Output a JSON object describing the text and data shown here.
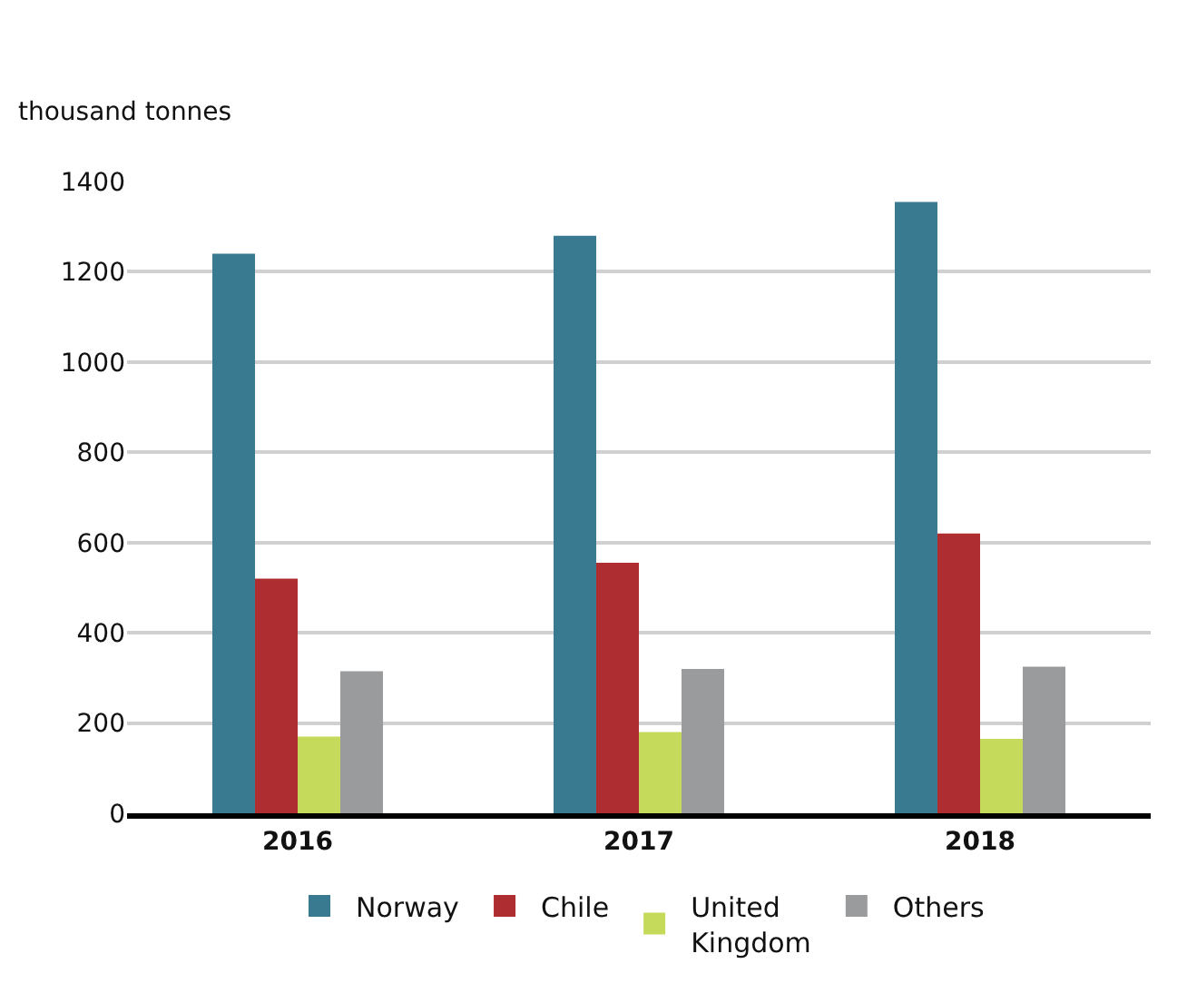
{
  "chart_data": {
    "type": "bar",
    "ylabel": "thousand tonnes",
    "categories": [
      "2016",
      "2017",
      "2018"
    ],
    "series": [
      {
        "name": "Norway",
        "color": "#3a7a90",
        "values": [
          1240,
          1280,
          1355
        ]
      },
      {
        "name": "Chile",
        "color": "#ad2d30",
        "values": [
          520,
          555,
          620
        ]
      },
      {
        "name": "United Kingdom",
        "color": "#c5da5a",
        "values": [
          170,
          180,
          165
        ]
      },
      {
        "name": "Others",
        "color": "#9a9b9d",
        "values": [
          315,
          320,
          325
        ]
      }
    ],
    "ylim": [
      0,
      1400
    ],
    "yticks": [
      0,
      200,
      400,
      600,
      800,
      1000,
      1200,
      1400
    ],
    "grid": "y",
    "legend": "bottom"
  }
}
